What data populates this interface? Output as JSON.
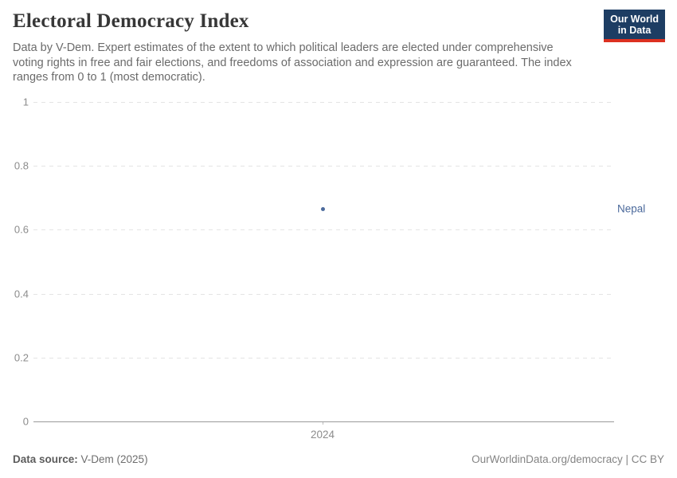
{
  "header": {
    "title": "Electoral Democracy Index",
    "subtitle": "Data by V-Dem. Expert estimates of the extent to which political leaders are elected under comprehensive voting rights in free and fair elections, and freedoms of association and expression are guaranteed. The index ranges from 0 to 1 (most democratic).",
    "logo": {
      "line1": "Our World",
      "line2": "in Data",
      "bg_color": "#1d3d63",
      "accent_color": "#dc3020"
    }
  },
  "chart_data": {
    "type": "scatter",
    "title": "Electoral Democracy Index",
    "entity": "Nepal",
    "x": [
      2024
    ],
    "values": [
      0.665
    ],
    "xticks": [
      "2024"
    ],
    "yticks": [
      0,
      0.2,
      0.4,
      0.6,
      0.8,
      1
    ],
    "ylim": [
      0,
      1
    ],
    "grid": "horizontal-dashed",
    "legend_position": "inline-right-label",
    "point_color": "#4C6A9C",
    "label_color": "#4C6A9C"
  },
  "footer": {
    "datasource_label": "Data source:",
    "datasource_value": " V-Dem (2025)",
    "attribution": "OurWorldinData.org/democracy | CC BY"
  }
}
